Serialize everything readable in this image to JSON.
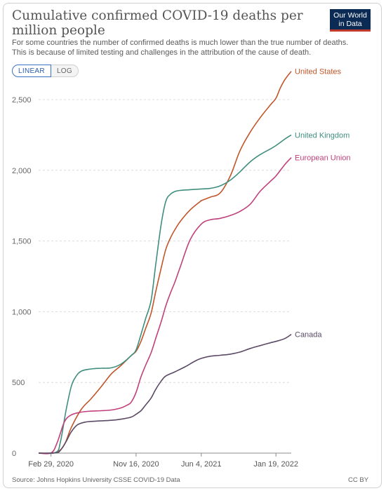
{
  "header": {
    "title": "Cumulative confirmed COVID-19 deaths per million people",
    "subtitle": "For some countries the number of confirmed deaths is much lower than the true number of deaths. This is because of limited testing and challenges in the attribution of the cause of death.",
    "logo_line1": "Our World",
    "logo_line2": "in Data"
  },
  "toggle": {
    "linear_label": "LINEAR",
    "log_label": "LOG",
    "active": "LINEAR"
  },
  "footer": {
    "source": "Source: Johns Hopkins University CSSE COVID-19 Data",
    "license": "CC BY"
  },
  "colors": {
    "brand": "#0b2b54",
    "accent_red": "#c0392b",
    "toggle_active": "#3a72c4"
  },
  "chart_data": {
    "type": "line",
    "title": "Cumulative confirmed COVID-19 deaths per million people",
    "xlabel": "",
    "ylabel": "",
    "ylim": [
      0,
      2500
    ],
    "yticks": [
      0,
      500,
      1000,
      1500,
      2000,
      2500
    ],
    "ytick_labels": [
      "0",
      "500",
      "1,000",
      "1,500",
      "2,000",
      "2,500"
    ],
    "xlim": [
      "2020-01-22",
      "2022-03-07"
    ],
    "xticks": [
      "2020-02-29",
      "2020-11-16",
      "2021-06-04",
      "2022-01-19"
    ],
    "xtick_labels": [
      "Feb 29, 2020",
      "Nov 16, 2020",
      "Jun 4, 2021",
      "Jan 19, 2022"
    ],
    "grid": true,
    "legend": "end-of-line labels",
    "series": [
      {
        "name": "United States",
        "color": "#c0562a",
        "points": [
          [
            "2020-01-22",
            0
          ],
          [
            "2020-03-15",
            5
          ],
          [
            "2020-04-10",
            60
          ],
          [
            "2020-05-01",
            180
          ],
          [
            "2020-06-01",
            310
          ],
          [
            "2020-07-01",
            385
          ],
          [
            "2020-08-01",
            470
          ],
          [
            "2020-09-01",
            560
          ],
          [
            "2020-10-01",
            620
          ],
          [
            "2020-11-01",
            690
          ],
          [
            "2020-11-16",
            720
          ],
          [
            "2020-12-01",
            790
          ],
          [
            "2020-12-15",
            880
          ],
          [
            "2021-01-01",
            990
          ],
          [
            "2021-01-15",
            1140
          ],
          [
            "2021-02-01",
            1310
          ],
          [
            "2021-02-15",
            1440
          ],
          [
            "2021-03-01",
            1520
          ],
          [
            "2021-03-15",
            1580
          ],
          [
            "2021-04-01",
            1640
          ],
          [
            "2021-05-01",
            1720
          ],
          [
            "2021-06-01",
            1780
          ],
          [
            "2021-06-04",
            1785
          ],
          [
            "2021-07-01",
            1810
          ],
          [
            "2021-08-01",
            1840
          ],
          [
            "2021-09-01",
            1960
          ],
          [
            "2021-10-01",
            2140
          ],
          [
            "2021-11-01",
            2270
          ],
          [
            "2021-12-01",
            2370
          ],
          [
            "2022-01-01",
            2460
          ],
          [
            "2022-01-19",
            2510
          ],
          [
            "2022-02-01",
            2580
          ],
          [
            "2022-02-15",
            2640
          ],
          [
            "2022-03-07",
            2700
          ]
        ]
      },
      {
        "name": "United Kingdom",
        "color": "#3f8e7e",
        "points": [
          [
            "2020-01-22",
            0
          ],
          [
            "2020-03-15",
            5
          ],
          [
            "2020-03-29",
            80
          ],
          [
            "2020-04-15",
            300
          ],
          [
            "2020-05-01",
            470
          ],
          [
            "2020-05-15",
            540
          ],
          [
            "2020-06-01",
            580
          ],
          [
            "2020-07-01",
            595
          ],
          [
            "2020-08-01",
            600
          ],
          [
            "2020-09-01",
            603
          ],
          [
            "2020-10-01",
            630
          ],
          [
            "2020-11-01",
            690
          ],
          [
            "2020-11-16",
            730
          ],
          [
            "2020-12-01",
            840
          ],
          [
            "2020-12-15",
            950
          ],
          [
            "2021-01-01",
            1080
          ],
          [
            "2021-01-15",
            1330
          ],
          [
            "2021-02-01",
            1620
          ],
          [
            "2021-02-15",
            1780
          ],
          [
            "2021-03-01",
            1830
          ],
          [
            "2021-03-15",
            1850
          ],
          [
            "2021-04-01",
            1858
          ],
          [
            "2021-05-01",
            1863
          ],
          [
            "2021-06-04",
            1868
          ],
          [
            "2021-07-01",
            1872
          ],
          [
            "2021-08-01",
            1890
          ],
          [
            "2021-09-01",
            1930
          ],
          [
            "2021-10-01",
            1990
          ],
          [
            "2021-11-01",
            2060
          ],
          [
            "2021-12-01",
            2110
          ],
          [
            "2022-01-01",
            2150
          ],
          [
            "2022-01-19",
            2175
          ],
          [
            "2022-02-15",
            2220
          ],
          [
            "2022-03-07",
            2250
          ]
        ]
      },
      {
        "name": "European Union",
        "color": "#c0417c",
        "points": [
          [
            "2020-01-22",
            0
          ],
          [
            "2020-03-01",
            2
          ],
          [
            "2020-03-20",
            80
          ],
          [
            "2020-04-10",
            220
          ],
          [
            "2020-05-01",
            270
          ],
          [
            "2020-06-01",
            290
          ],
          [
            "2020-07-01",
            297
          ],
          [
            "2020-08-01",
            300
          ],
          [
            "2020-09-01",
            305
          ],
          [
            "2020-10-01",
            320
          ],
          [
            "2020-10-20",
            340
          ],
          [
            "2020-11-01",
            360
          ],
          [
            "2020-11-16",
            430
          ],
          [
            "2020-12-01",
            540
          ],
          [
            "2020-12-15",
            620
          ],
          [
            "2021-01-01",
            710
          ],
          [
            "2021-01-15",
            810
          ],
          [
            "2021-02-01",
            930
          ],
          [
            "2021-02-15",
            1040
          ],
          [
            "2021-03-01",
            1130
          ],
          [
            "2021-03-15",
            1210
          ],
          [
            "2021-04-01",
            1320
          ],
          [
            "2021-05-01",
            1510
          ],
          [
            "2021-06-04",
            1620
          ],
          [
            "2021-07-01",
            1650
          ],
          [
            "2021-08-01",
            1660
          ],
          [
            "2021-09-01",
            1680
          ],
          [
            "2021-10-01",
            1710
          ],
          [
            "2021-11-01",
            1760
          ],
          [
            "2021-12-01",
            1850
          ],
          [
            "2022-01-01",
            1920
          ],
          [
            "2022-01-19",
            1960
          ],
          [
            "2022-02-15",
            2040
          ],
          [
            "2022-03-07",
            2090
          ]
        ]
      },
      {
        "name": "Canada",
        "color": "#5a4a66",
        "points": [
          [
            "2020-01-22",
            0
          ],
          [
            "2020-03-15",
            2
          ],
          [
            "2020-03-29",
            20
          ],
          [
            "2020-04-15",
            80
          ],
          [
            "2020-05-01",
            150
          ],
          [
            "2020-05-20",
            200
          ],
          [
            "2020-06-15",
            220
          ],
          [
            "2020-07-15",
            226
          ],
          [
            "2020-09-01",
            232
          ],
          [
            "2020-10-01",
            240
          ],
          [
            "2020-11-01",
            255
          ],
          [
            "2020-11-16",
            275
          ],
          [
            "2020-12-01",
            300
          ],
          [
            "2020-12-15",
            340
          ],
          [
            "2021-01-01",
            390
          ],
          [
            "2021-01-15",
            450
          ],
          [
            "2021-02-01",
            510
          ],
          [
            "2021-02-15",
            545
          ],
          [
            "2021-03-15",
            575
          ],
          [
            "2021-04-15",
            610
          ],
          [
            "2021-05-15",
            650
          ],
          [
            "2021-06-04",
            670
          ],
          [
            "2021-07-01",
            685
          ],
          [
            "2021-08-01",
            692
          ],
          [
            "2021-09-01",
            700
          ],
          [
            "2021-10-01",
            715
          ],
          [
            "2021-11-01",
            740
          ],
          [
            "2021-12-01",
            760
          ],
          [
            "2022-01-01",
            780
          ],
          [
            "2022-01-19",
            790
          ],
          [
            "2022-02-15",
            810
          ],
          [
            "2022-03-07",
            840
          ]
        ]
      }
    ]
  }
}
